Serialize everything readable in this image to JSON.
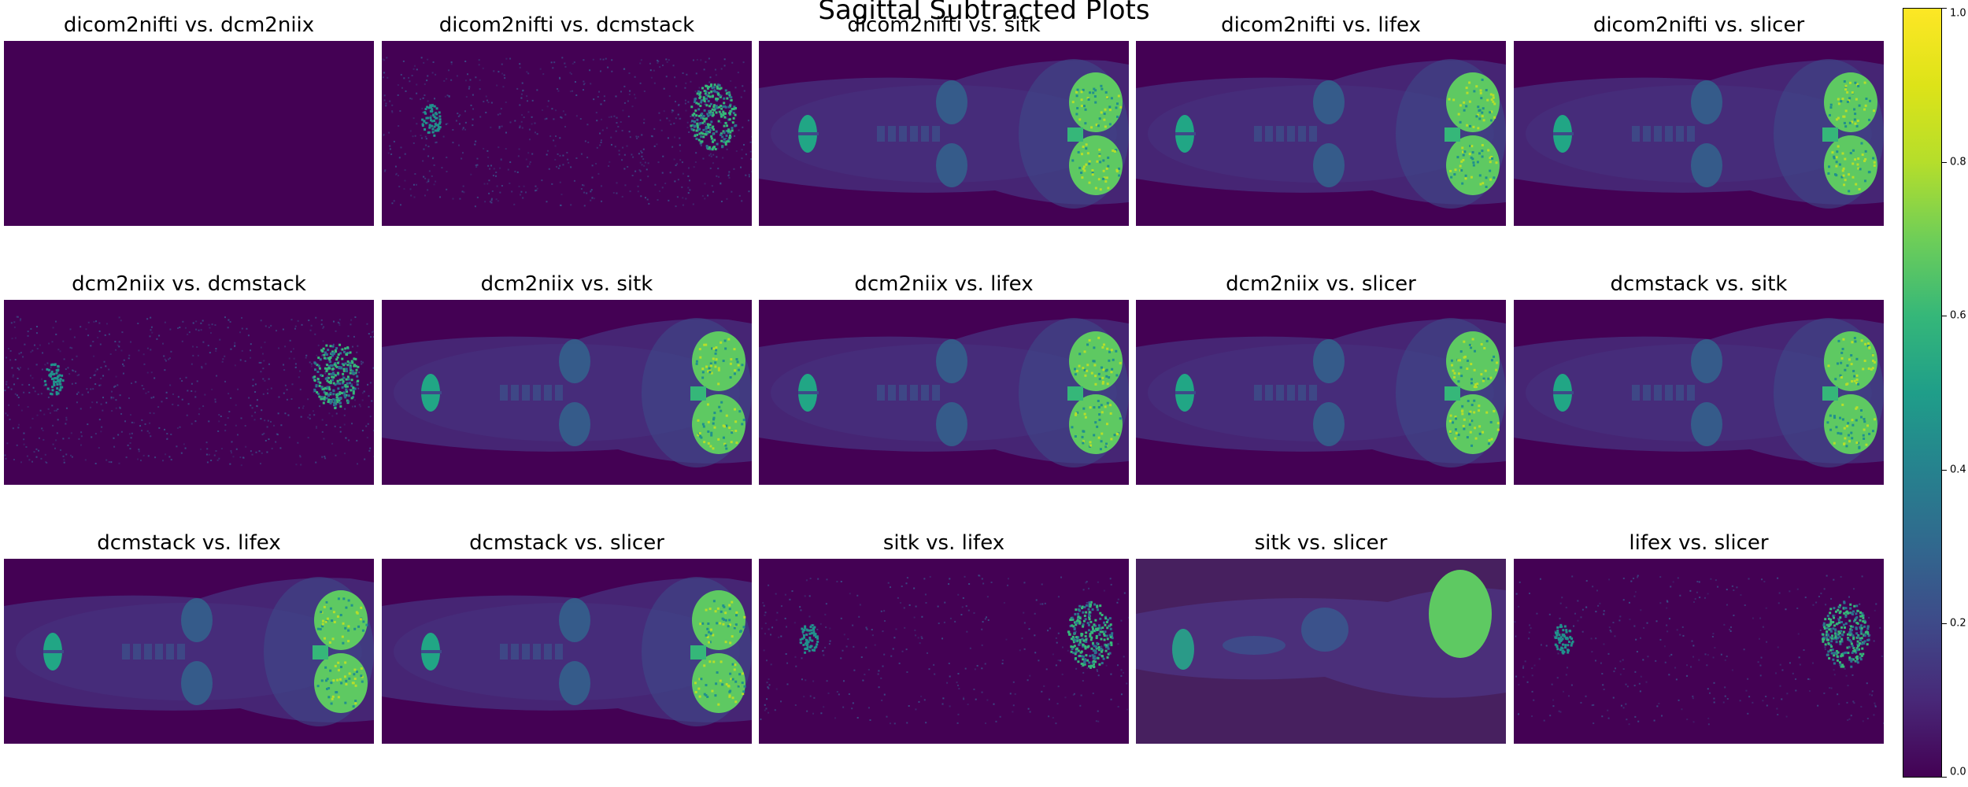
{
  "chart_data": {
    "type": "heatmap",
    "title": "Sagittal Subtracted Plots",
    "colormap": "viridis",
    "colors": {
      "low": "#440154",
      "mid": "#21918c",
      "high": "#fde725"
    },
    "colorbar": {
      "range": [
        0.0,
        1.0
      ],
      "ticks": [
        "0.0",
        "0.2",
        "0.4",
        "0.6",
        "0.8",
        "1.0"
      ]
    },
    "grid": false,
    "panels": [
      {
        "title": "dicom2nifti vs. dcm2niix",
        "pattern": "blank"
      },
      {
        "title": "dicom2nifti vs. dcmstack",
        "pattern": "noise"
      },
      {
        "title": "dicom2nifti vs. sitk",
        "pattern": "anatomy"
      },
      {
        "title": "dicom2nifti vs. lifex",
        "pattern": "anatomy"
      },
      {
        "title": "dicom2nifti vs. slicer",
        "pattern": "anatomy"
      },
      {
        "title": "dcm2niix vs. dcmstack",
        "pattern": "noise"
      },
      {
        "title": "dcm2niix vs. sitk",
        "pattern": "anatomy"
      },
      {
        "title": "dcm2niix vs. lifex",
        "pattern": "anatomy"
      },
      {
        "title": "dcm2niix vs. slicer",
        "pattern": "anatomy"
      },
      {
        "title": "dcmstack vs. sitk",
        "pattern": "anatomy"
      },
      {
        "title": "dcmstack vs. lifex",
        "pattern": "anatomy"
      },
      {
        "title": "dcmstack vs. slicer",
        "pattern": "anatomy"
      },
      {
        "title": "sitk vs. lifex",
        "pattern": "noise"
      },
      {
        "title": "sitk vs. slicer",
        "pattern": "offset"
      },
      {
        "title": "lifex vs. slicer",
        "pattern": "noise"
      }
    ]
  }
}
